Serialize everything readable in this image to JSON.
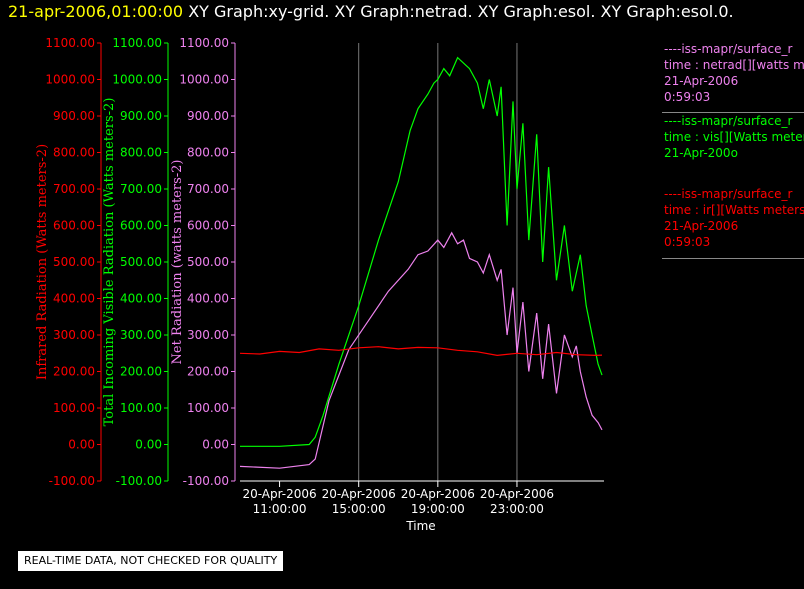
{
  "header": {
    "timestamp": "21-apr-2006,01:00:00",
    "graphs": "XY Graph:xy-grid.  XY Graph:netrad.  XY Graph:esol.  XY Graph:esol.0."
  },
  "colors": {
    "ir": "#ff0000",
    "vis": "#00ff00",
    "netrad": "#ee82ee",
    "axis": "#ffffff",
    "background": "#000000"
  },
  "legend": [
    {
      "color": "#ee82ee",
      "lines": [
        "----iss-mapr/surface_r",
        "time : netrad[][watts m",
        "21-Apr-2006",
        "0:59:03"
      ]
    },
    {
      "color": "#00ff00",
      "lines": [
        "----iss-mapr/surface_r",
        "time : vis[][Watts meter",
        "21-Apr-200o"
      ]
    },
    {
      "color": "#ff0000",
      "lines": [
        "----iss-mapr/surface_r",
        "time : ir[][Watts meters",
        "21-Apr-2006",
        "0:59:03"
      ]
    }
  ],
  "note": "REAL-TIME DATA, NOT CHECKED FOR QUALITY",
  "chart_data": {
    "type": "line",
    "xlabel": "Time",
    "x_ticks": [
      {
        "hour": 11,
        "date": "20-Apr-2006",
        "time": "11:00:00"
      },
      {
        "hour": 15,
        "date": "20-Apr-2006",
        "time": "15:00:00"
      },
      {
        "hour": 19,
        "date": "20-Apr-2006",
        "time": "19:00:00"
      },
      {
        "hour": 23,
        "date": "20-Apr-2006",
        "time": "23:00:00"
      }
    ],
    "xlim_hours": [
      9.0,
      27.4
    ],
    "ylim": [
      -100,
      1100
    ],
    "y_ticks": [
      "-100.00",
      "0.00",
      "100.00",
      "200.00",
      "300.00",
      "400.00",
      "500.00",
      "600.00",
      "700.00",
      "800.00",
      "900.00",
      "1000.00",
      "1100.00"
    ],
    "y_axes": [
      {
        "label": "Infrared Radiation (Watts meters-2)",
        "color": "#ff0000"
      },
      {
        "label": "Total Incoming Visible Radiation (Watts meters-2)",
        "color": "#00ff00"
      },
      {
        "label": "Net Radiation (watts meters-2)",
        "color": "#ee82ee"
      }
    ],
    "grid": "vertical",
    "series": [
      {
        "key": "vis",
        "color": "#00ff00",
        "x": [
          9.0,
          11.0,
          12.5,
          12.8,
          13.2,
          14.0,
          15.0,
          16.0,
          17.0,
          17.6,
          18.0,
          18.5,
          18.8,
          19.0,
          19.3,
          19.6,
          20.0,
          20.4,
          20.6,
          21.0,
          21.3,
          21.6,
          22.0,
          22.2,
          22.5,
          22.8,
          23.0,
          23.3,
          23.6,
          24.0,
          24.3,
          24.6,
          25.0,
          25.4,
          25.8,
          26.2,
          26.5,
          26.8,
          27.1,
          27.3
        ],
        "y": [
          -5,
          -5,
          0,
          20,
          80,
          220,
          380,
          560,
          720,
          860,
          920,
          960,
          990,
          1000,
          1030,
          1010,
          1060,
          1040,
          1030,
          990,
          920,
          1000,
          900,
          980,
          600,
          940,
          700,
          880,
          560,
          850,
          500,
          760,
          450,
          600,
          420,
          520,
          380,
          300,
          220,
          190
        ]
      },
      {
        "key": "netrad",
        "color": "#ee82ee",
        "x": [
          9.0,
          11.0,
          12.5,
          12.8,
          13.5,
          14.5,
          15.5,
          16.5,
          17.5,
          18.0,
          18.5,
          19.0,
          19.3,
          19.7,
          20.0,
          20.3,
          20.6,
          21.0,
          21.3,
          21.6,
          22.0,
          22.2,
          22.5,
          22.8,
          23.0,
          23.3,
          23.6,
          24.0,
          24.3,
          24.6,
          25.0,
          25.4,
          25.8,
          26.0,
          26.2,
          26.5,
          26.8,
          27.1,
          27.3
        ],
        "y": [
          -60,
          -65,
          -55,
          -40,
          120,
          260,
          340,
          420,
          480,
          520,
          530,
          560,
          540,
          580,
          550,
          560,
          510,
          500,
          470,
          520,
          450,
          480,
          300,
          430,
          250,
          390,
          200,
          360,
          180,
          330,
          140,
          300,
          240,
          270,
          200,
          130,
          80,
          60,
          40
        ]
      },
      {
        "key": "ir",
        "color": "#ff0000",
        "x": [
          9.0,
          10.0,
          11.0,
          12.0,
          13.0,
          14.0,
          15.0,
          16.0,
          17.0,
          18.0,
          19.0,
          20.0,
          21.0,
          22.0,
          23.0,
          24.0,
          25.0,
          26.0,
          27.0,
          27.3
        ],
        "y": [
          250,
          248,
          255,
          252,
          262,
          258,
          265,
          268,
          262,
          266,
          265,
          258,
          254,
          244,
          250,
          246,
          252,
          246,
          244,
          245
        ]
      }
    ]
  }
}
